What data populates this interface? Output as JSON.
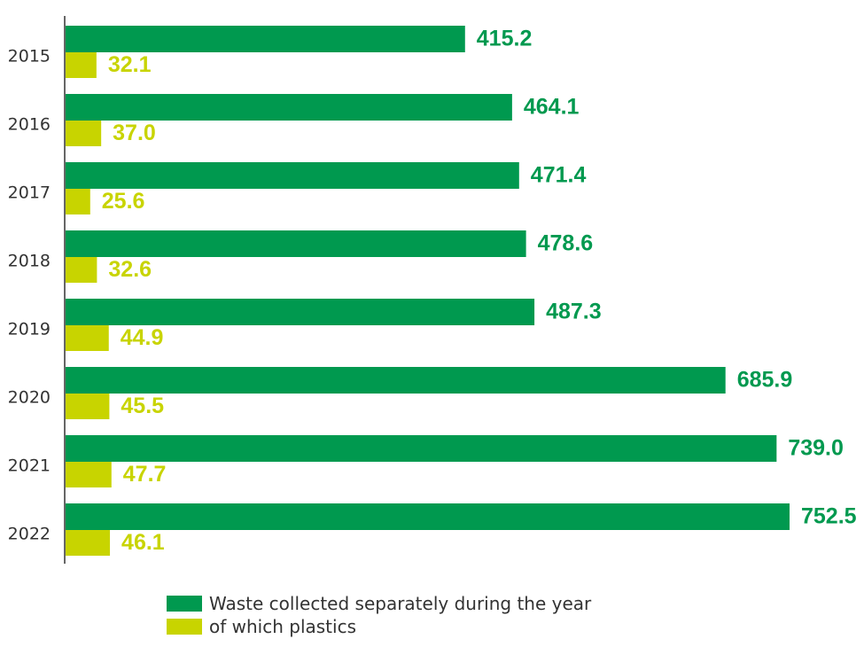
{
  "chart_data": {
    "type": "bar",
    "orientation": "horizontal",
    "categories": [
      "2015",
      "2016",
      "2017",
      "2018",
      "2019",
      "2020",
      "2021",
      "2022"
    ],
    "series": [
      {
        "name": "Waste collected separately during the year",
        "color": "#00994f",
        "values": [
          415.2,
          464.1,
          471.4,
          478.6,
          487.3,
          685.9,
          739.0,
          752.5
        ],
        "labels": [
          "415.2",
          "464.1",
          "471.4",
          "478.6",
          "487.3",
          "685.9",
          "739.0",
          "752.5"
        ]
      },
      {
        "name": "of which plastics",
        "color": "#c8d400",
        "values": [
          32.1,
          37.0,
          25.6,
          32.6,
          44.9,
          45.5,
          47.7,
          46.1
        ],
        "labels": [
          "32.1",
          "37.0",
          "25.6",
          "32.6",
          "44.9",
          "45.5",
          "47.7",
          "46.1"
        ]
      }
    ],
    "xlim": [
      0,
      752.5
    ],
    "grid": false,
    "legend_position": "bottom"
  }
}
